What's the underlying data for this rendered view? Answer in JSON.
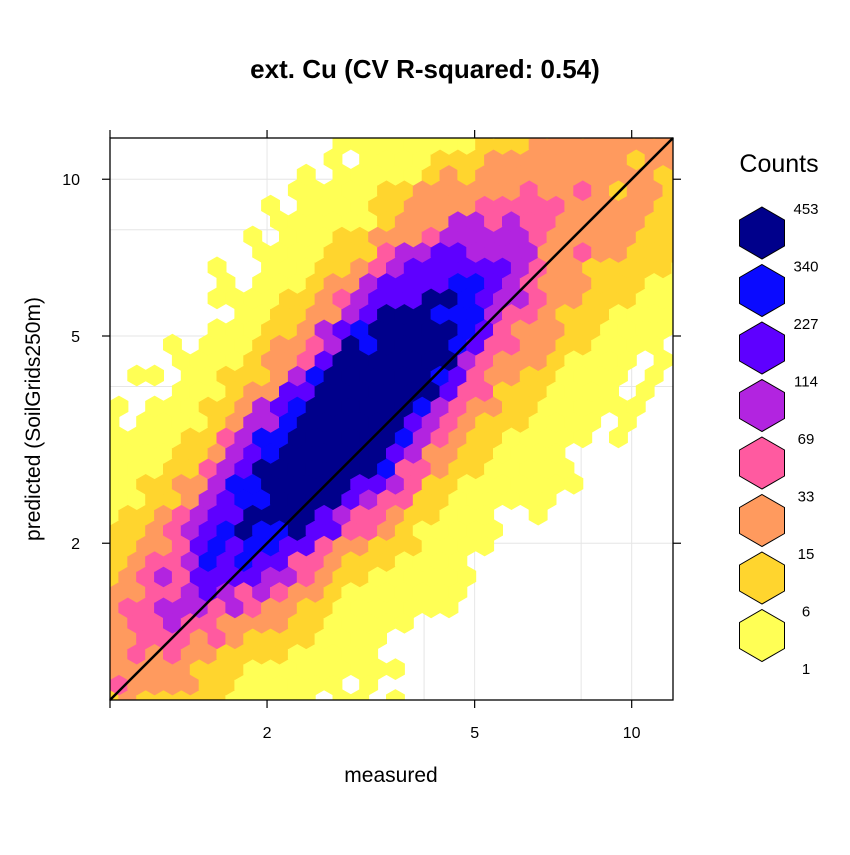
{
  "chart_data": {
    "type": "hexbin",
    "title": "ext. Cu  (CV R-squared: 0.54)",
    "xlabel": "measured",
    "ylabel": "predicted (SoilGrids250m)",
    "x_scale": "log",
    "y_scale": "log",
    "xlim": [
      1,
      12
    ],
    "ylim": [
      1,
      12
    ],
    "x_ticks": [
      {
        "value": 2,
        "label": "2"
      },
      {
        "value": 5,
        "label": "5"
      },
      {
        "value": 10,
        "label": "10"
      }
    ],
    "y_ticks": [
      {
        "value": 2,
        "label": "2"
      },
      {
        "value": 5,
        "label": "5"
      },
      {
        "value": 10,
        "label": "10"
      }
    ],
    "grid": true,
    "reference_line": {
      "type": "1:1",
      "color": "#000000"
    },
    "legend": {
      "title": "Counts",
      "placement": "right",
      "levels": [
        {
          "label": "453",
          "color": "#00008B"
        },
        {
          "label": "340",
          "color": "#0A0AFF"
        },
        {
          "label": "227",
          "color": "#5E00FF"
        },
        {
          "label": "114",
          "color": "#B224E0"
        },
        {
          "label": "69",
          "color": "#FF5AA0"
        },
        {
          "label": "33",
          "color": "#FF9A5E"
        },
        {
          "label": "15",
          "color": "#FFD52E"
        },
        {
          "label": "6",
          "color": "#FFFF55"
        },
        {
          "label": "1",
          "color": ""
        }
      ]
    }
  }
}
